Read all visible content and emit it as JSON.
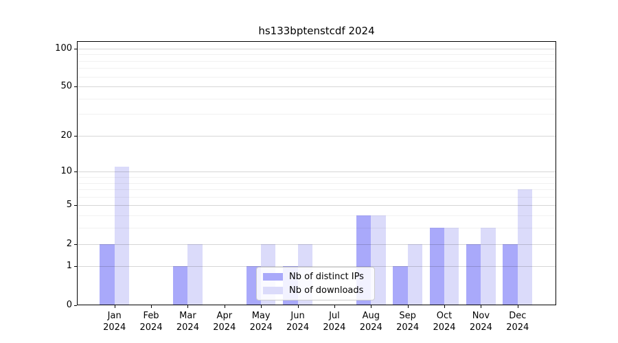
{
  "chart_data": {
    "type": "bar",
    "title": "hs133bptenstcdf 2024",
    "categories": [
      [
        "Jan",
        "2024"
      ],
      [
        "Feb",
        "2024"
      ],
      [
        "Mar",
        "2024"
      ],
      [
        "Apr",
        "2024"
      ],
      [
        "May",
        "2024"
      ],
      [
        "Jun",
        "2024"
      ],
      [
        "Jul",
        "2024"
      ],
      [
        "Aug",
        "2024"
      ],
      [
        "Sep",
        "2024"
      ],
      [
        "Oct",
        "2024"
      ],
      [
        "Nov",
        "2024"
      ],
      [
        "Dec",
        "2024"
      ]
    ],
    "series": [
      {
        "name": "Nb of distinct IPs",
        "color": "#a9a9fa",
        "values": [
          2,
          0,
          1,
          0,
          1,
          1,
          0,
          4,
          1,
          3,
          2,
          2
        ]
      },
      {
        "name": "Nb of downloads",
        "color": "#dbdbfa",
        "values": [
          11,
          0,
          2,
          0,
          2,
          2,
          0,
          4,
          2,
          3,
          3,
          7
        ]
      }
    ],
    "yscale": "log1p",
    "ylim": [
      0,
      114.2
    ],
    "y_major_ticks": [
      0,
      1,
      2,
      5,
      10,
      20,
      50,
      100
    ],
    "y_minor_gridlines": [
      3,
      4,
      6,
      7,
      8,
      9,
      30,
      40,
      60,
      70,
      80,
      90
    ],
    "xlabel": "",
    "ylabel": "",
    "grid": true,
    "legend_position": "lower center"
  }
}
